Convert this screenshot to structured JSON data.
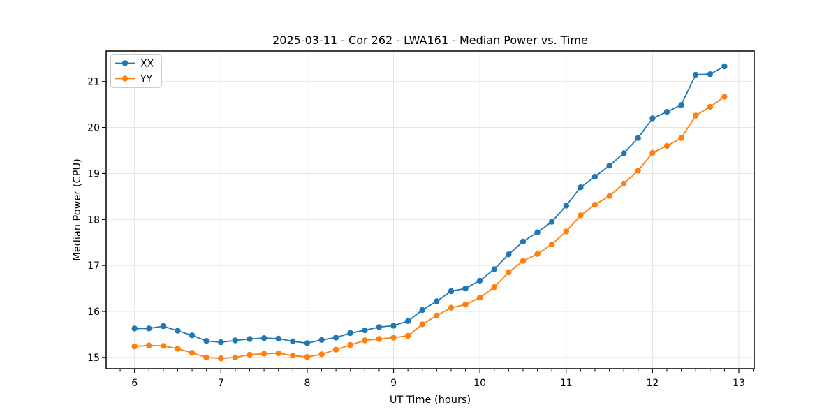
{
  "chart_data": {
    "type": "line",
    "title": "2025-03-11 - Cor 262 - LWA161 - Median Power vs. Time",
    "xlabel": "UT Time (hours)",
    "ylabel": "Median Power (CPU)",
    "xlim": [
      5.671,
      13.178
    ],
    "ylim": [
      14.755,
      21.664
    ],
    "x_major_ticks": [
      6,
      7,
      8,
      9,
      10,
      11,
      12,
      13
    ],
    "y_major_ticks": [
      15,
      16,
      17,
      18,
      19,
      20,
      21
    ],
    "x_minor_tick_interval_hours": 0.1667,
    "grid": true,
    "grid_color": "#e3e3e3",
    "legend_position": "upper-left",
    "marker": "circle",
    "x": [
      6.0,
      6.167,
      6.333,
      6.5,
      6.667,
      6.833,
      7.0,
      7.167,
      7.333,
      7.5,
      7.667,
      7.833,
      8.0,
      8.167,
      8.333,
      8.5,
      8.667,
      8.833,
      9.0,
      9.167,
      9.333,
      9.5,
      9.667,
      9.833,
      10.0,
      10.167,
      10.333,
      10.5,
      10.667,
      10.833,
      11.0,
      11.167,
      11.333,
      11.5,
      11.667,
      11.833,
      12.0,
      12.167,
      12.333,
      12.5,
      12.667,
      12.833
    ],
    "series": [
      {
        "name": "XX",
        "color": "#1f77b4",
        "values": [
          15.63,
          15.63,
          15.68,
          15.58,
          15.48,
          15.36,
          15.33,
          15.37,
          15.4,
          15.42,
          15.41,
          15.35,
          15.31,
          15.38,
          15.43,
          15.53,
          15.59,
          15.66,
          15.69,
          15.79,
          16.03,
          16.22,
          16.44,
          16.5,
          16.67,
          16.92,
          17.24,
          17.52,
          17.72,
          17.95,
          18.3,
          18.7,
          18.93,
          19.17,
          19.44,
          19.77,
          20.2,
          20.34,
          20.49,
          21.15,
          21.16,
          21.33
        ]
      },
      {
        "name": "YY",
        "color": "#ff7f0e",
        "values": [
          15.24,
          15.26,
          15.25,
          15.19,
          15.1,
          15.0,
          14.98,
          15.0,
          15.06,
          15.08,
          15.09,
          15.04,
          15.01,
          15.07,
          15.17,
          15.27,
          15.37,
          15.4,
          15.43,
          15.47,
          15.72,
          15.91,
          16.08,
          16.15,
          16.3,
          16.53,
          16.85,
          17.1,
          17.25,
          17.46,
          17.74,
          18.09,
          18.32,
          18.51,
          18.78,
          19.06,
          19.45,
          19.6,
          19.77,
          20.26,
          20.45,
          20.67
        ]
      }
    ]
  }
}
